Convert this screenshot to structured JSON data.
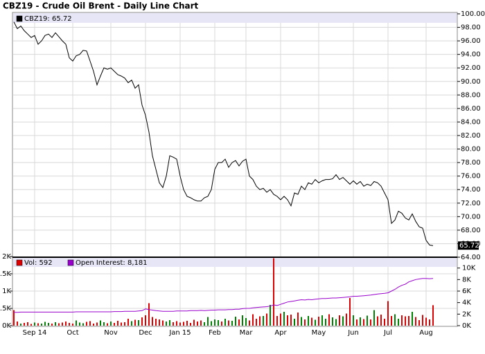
{
  "chart_data": [
    {
      "type": "line",
      "title": "CBZ19 - Crude Oil Brent - Daily Line Chart",
      "xlim": [
        0,
        121
      ],
      "ylim": [
        64,
        100
      ],
      "grid": true,
      "yticks": [
        {
          "value": 64,
          "label": "64.00"
        },
        {
          "value": 66,
          "label": "66.00"
        },
        {
          "value": 68,
          "label": "68.00"
        },
        {
          "value": 70,
          "label": "70.00"
        },
        {
          "value": 72,
          "label": "72.00"
        },
        {
          "value": 74,
          "label": "74.00"
        },
        {
          "value": 76,
          "label": "76.00"
        },
        {
          "value": 78,
          "label": "78.00"
        },
        {
          "value": 80,
          "label": "80.00"
        },
        {
          "value": 82,
          "label": "82.00"
        },
        {
          "value": 84,
          "label": "84.00"
        },
        {
          "value": 86,
          "label": "86.00"
        },
        {
          "value": 88,
          "label": "88.00"
        },
        {
          "value": 90,
          "label": "90.00"
        },
        {
          "value": 92,
          "label": "92.00"
        },
        {
          "value": 94,
          "label": "94.00"
        },
        {
          "value": 96,
          "label": "96.00"
        },
        {
          "value": 98,
          "label": "98.00"
        },
        {
          "value": 100,
          "label": "100.00"
        }
      ],
      "series": [
        {
          "name": "CBZ19: 65.72",
          "color": "#000000",
          "values": [
            98.8,
            97.8,
            98.2,
            97.5,
            97,
            96.5,
            96.8,
            95.5,
            96,
            96.8,
            97,
            96.5,
            97.2,
            96.6,
            96,
            95.5,
            93.5,
            93,
            93.8,
            94,
            94.6,
            94.5,
            93,
            91.5,
            89.5,
            90.8,
            92,
            91.8,
            92,
            91.5,
            91,
            90.8,
            90.5,
            89.8,
            90.2,
            89,
            89.5,
            86.5,
            85,
            82.5,
            79,
            77,
            75,
            74.3,
            76,
            79,
            78.8,
            78.5,
            76,
            74,
            73,
            72.8,
            72.5,
            72.3,
            72.3,
            72.8,
            73,
            74,
            77,
            78,
            78,
            78.5,
            77.3,
            78,
            78.3,
            77.5,
            78.2,
            78.5,
            76,
            75.5,
            74.5,
            74,
            74.2,
            73.6,
            74,
            73.3,
            73,
            72.5,
            73,
            72.5,
            71.6,
            73.5,
            73.3,
            74.5,
            74,
            75,
            74.8,
            75.5,
            75,
            75.3,
            75.5,
            75.5,
            75.6,
            76.2,
            75.5,
            75.8,
            75.3,
            74.8,
            75.3,
            74.8,
            75.2,
            74.5,
            74.8,
            74.6,
            75.2,
            75,
            74.5,
            73.5,
            72.5,
            69,
            69.5,
            70.8,
            70.5,
            69.8,
            69.5,
            70.4,
            69.3,
            68.5,
            68.3,
            66.5,
            65.8,
            65.72
          ]
        }
      ]
    },
    {
      "type": "bar",
      "xlim": [
        0,
        121
      ],
      "ylim": [
        0,
        2000
      ],
      "y2lim": [
        0,
        12000
      ],
      "grid": true,
      "up_color": "#008000",
      "xticks": [
        {
          "value": 6,
          "label": "Sep 14"
        },
        {
          "value": 17,
          "label": "Oct"
        },
        {
          "value": 28,
          "label": "Nov"
        },
        {
          "value": 38,
          "label": "Dec"
        },
        {
          "value": 48,
          "label": "Jan 15"
        },
        {
          "value": 58,
          "label": "Feb"
        },
        {
          "value": 67,
          "label": "Mar"
        },
        {
          "value": 77,
          "label": "Apr"
        },
        {
          "value": 88,
          "label": "May"
        },
        {
          "value": 98,
          "label": "Jun"
        },
        {
          "value": 108,
          "label": "Jul"
        },
        {
          "value": 119,
          "label": "Aug"
        }
      ],
      "yticks": [
        {
          "value": 0,
          "label": "0K"
        },
        {
          "value": 500,
          "label": "0.5K"
        },
        {
          "value": 1000,
          "label": "1K"
        },
        {
          "value": 1500,
          "label": "1.5K"
        },
        {
          "value": 2000,
          "label": "2K"
        }
      ],
      "y2ticks": [
        {
          "value": 0,
          "label": "0K"
        },
        {
          "value": 2000,
          "label": "2K"
        },
        {
          "value": 4000,
          "label": "4K"
        },
        {
          "value": 6000,
          "label": "6K"
        },
        {
          "value": 8000,
          "label": "8K"
        },
        {
          "value": 10000,
          "label": "10K"
        }
      ],
      "series": [
        {
          "name": "Vol: 592",
          "color": "#dd0000",
          "values": [
            450,
            120,
            60,
            80,
            100,
            50,
            90,
            70,
            60,
            110,
            80,
            60,
            100,
            70,
            90,
            120,
            80,
            60,
            150,
            90,
            70,
            110,
            130,
            60,
            90,
            150,
            100,
            70,
            120,
            80,
            140,
            90,
            100,
            200,
            130,
            170,
            160,
            240,
            300,
            650,
            250,
            200,
            180,
            150,
            120,
            160,
            100,
            130,
            90,
            110,
            140,
            80,
            170,
            120,
            150,
            100,
            250,
            130,
            180,
            160,
            120,
            200,
            150,
            140,
            260,
            180,
            300,
            220,
            150,
            330,
            200,
            270,
            280,
            350,
            600,
            1950,
            280,
            350,
            400,
            300,
            320,
            200,
            380,
            250,
            180,
            280,
            230,
            170,
            260,
            300,
            200,
            330,
            240,
            190,
            300,
            270,
            350,
            800,
            300,
            180,
            240,
            190,
            290,
            180,
            450,
            270,
            320,
            200,
            710,
            280,
            330,
            200,
            300,
            270,
            280,
            400,
            250,
            160,
            310,
            230,
            180,
            592
          ]
        },
        {
          "name": "Open Interest: 8,181",
          "color": "#9900cc",
          "axis": "y2",
          "values": [
            2300,
            2300,
            2350,
            2350,
            2350,
            2350,
            2350,
            2350,
            2350,
            2350,
            2350,
            2350,
            2350,
            2350,
            2350,
            2350,
            2350,
            2350,
            2400,
            2400,
            2400,
            2400,
            2400,
            2400,
            2400,
            2400,
            2400,
            2400,
            2400,
            2450,
            2450,
            2450,
            2500,
            2500,
            2500,
            2500,
            2550,
            2600,
            2900,
            2800,
            2700,
            2600,
            2550,
            2500,
            2500,
            2500,
            2500,
            2550,
            2550,
            2550,
            2550,
            2600,
            2600,
            2600,
            2650,
            2600,
            2650,
            2700,
            2700,
            2750,
            2750,
            2750,
            2800,
            2800,
            2850,
            2850,
            2950,
            3000,
            3000,
            3100,
            3150,
            3200,
            3250,
            3300,
            3400,
            3600,
            3500,
            3700,
            3900,
            4100,
            4200,
            4300,
            4400,
            4500,
            4450,
            4550,
            4500,
            4600,
            4650,
            4700,
            4700,
            4750,
            4800,
            4800,
            4850,
            4900,
            4950,
            5000,
            5100,
            5100,
            5150,
            5200,
            5250,
            5300,
            5400,
            5500,
            5550,
            5600,
            5700,
            6000,
            6300,
            6700,
            7000,
            7200,
            7600,
            7800,
            8000,
            8100,
            8200,
            8200,
            8150,
            8181
          ]
        }
      ]
    }
  ]
}
